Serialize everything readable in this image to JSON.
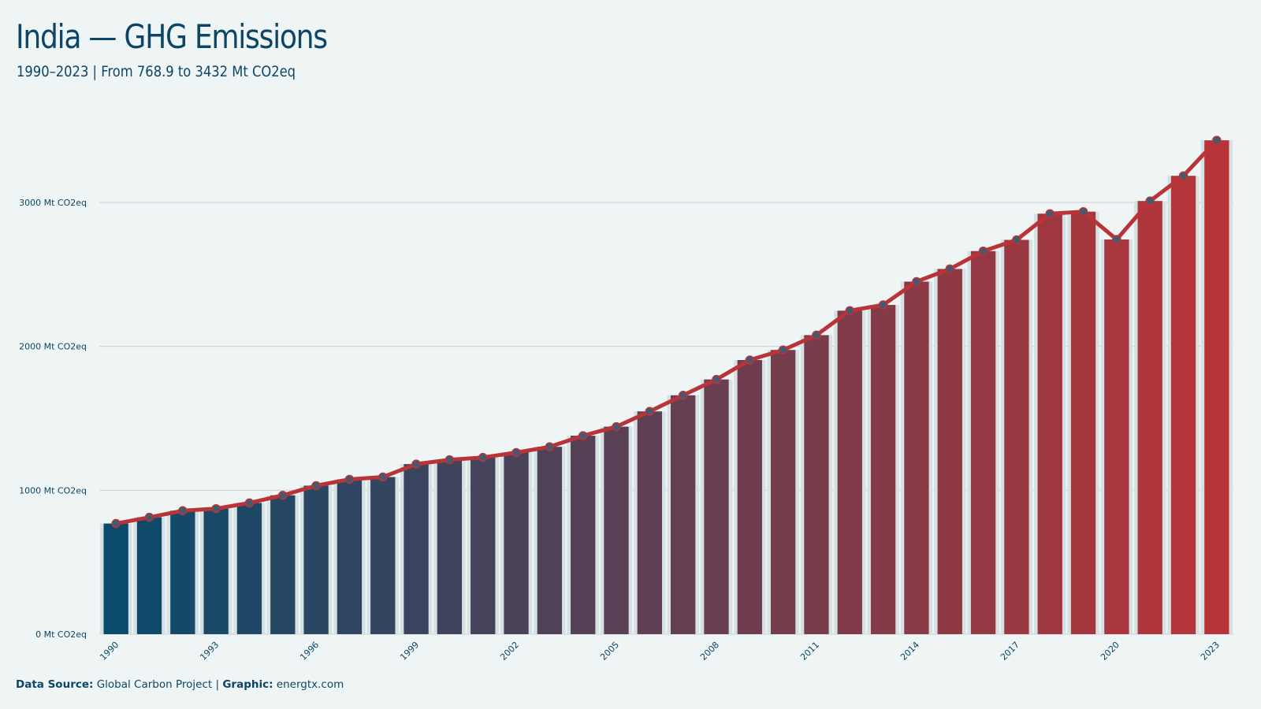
{
  "header": {
    "title": "India — GHG Emissions",
    "subtitle": "1990–2023 | From 768.9 to 3432 Mt CO2eq"
  },
  "footer": {
    "source_label": "Data Source:",
    "source_value": "Global Carbon Project",
    "separator": "|",
    "graphic_label": "Graphic:",
    "graphic_value": "energtx.com"
  },
  "colors": {
    "start": "#0a4a6c",
    "end": "#b93438",
    "line": "#b93438",
    "marker": "#455a70",
    "grid": "#c8d0d2",
    "text": "#0c4566",
    "background": "#eff5f4"
  },
  "chart_data": {
    "type": "bar",
    "title": "India — GHG Emissions",
    "subtitle": "1990–2023 | From 768.9 to 3432 Mt CO2eq",
    "xlabel": "",
    "ylabel": "",
    "ylim": [
      0,
      3500
    ],
    "yticks": [
      0,
      1000,
      2000,
      3000
    ],
    "ytick_labels": [
      "0 Mt CO2eq",
      "1000 Mt CO2eq",
      "2000 Mt CO2eq",
      "3000 Mt CO2eq"
    ],
    "xtick_labels": [
      "1990",
      "1993",
      "1996",
      "1999",
      "2002",
      "2005",
      "2008",
      "2011",
      "2014",
      "2017",
      "2020",
      "2023"
    ],
    "grid": true,
    "overlay": "line with markers over bars, same values",
    "categories": [
      "1990",
      "1991",
      "1992",
      "1993",
      "1994",
      "1995",
      "1996",
      "1997",
      "1998",
      "1999",
      "2000",
      "2001",
      "2002",
      "2003",
      "2004",
      "2005",
      "2006",
      "2007",
      "2008",
      "2009",
      "2010",
      "2011",
      "2012",
      "2013",
      "2014",
      "2015",
      "2016",
      "2017",
      "2018",
      "2019",
      "2020",
      "2021",
      "2022",
      "2023"
    ],
    "values": [
      768.9,
      812,
      858,
      872,
      912,
      965,
      1032,
      1076,
      1092,
      1182,
      1212,
      1228,
      1262,
      1302,
      1379,
      1442,
      1548,
      1660,
      1770,
      1905,
      1975,
      2078,
      2248,
      2288,
      2450,
      2538,
      2662,
      2740,
      2922,
      2936,
      2743,
      3010,
      3185,
      3432
    ]
  }
}
